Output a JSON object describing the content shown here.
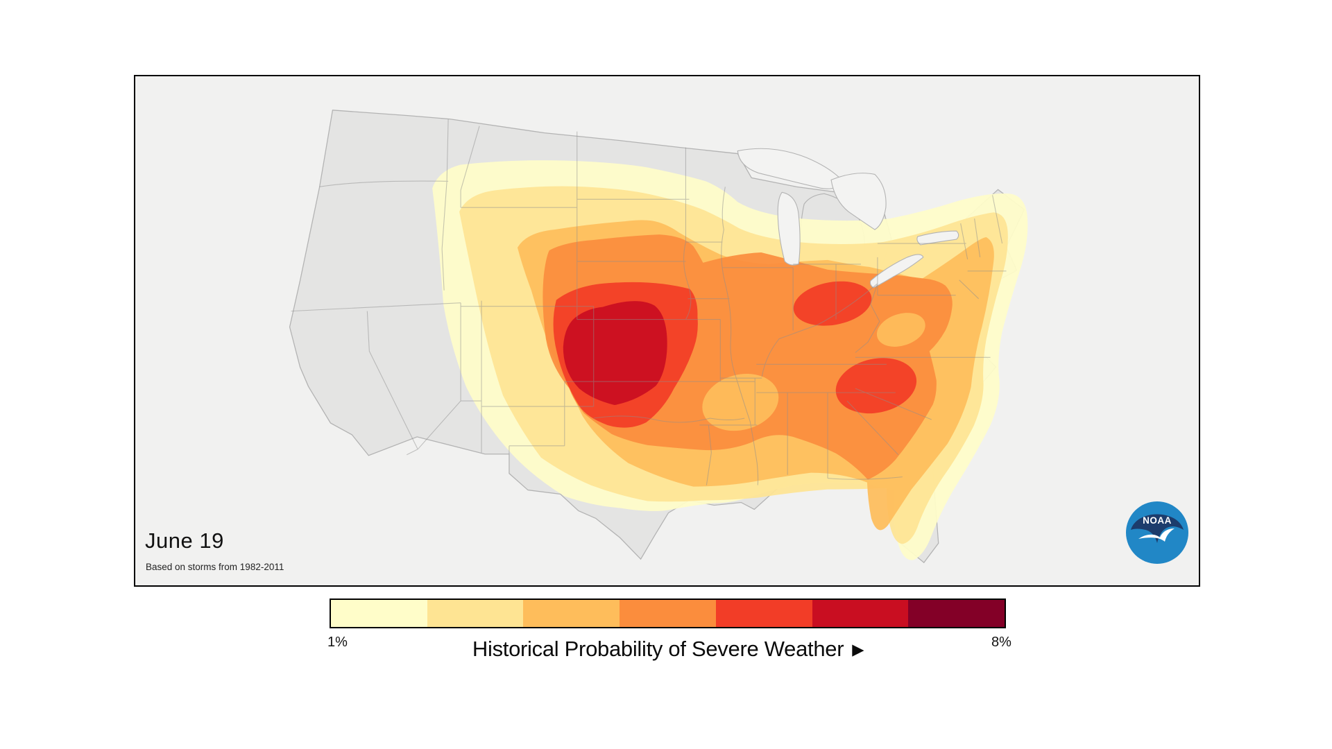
{
  "frame": {
    "date_label": "June 19",
    "subtitle": "Based on storms from 1982-2011"
  },
  "logo": {
    "org": "NOAA",
    "navy": "#1c3c6c",
    "blue": "#2187c6"
  },
  "legend": {
    "title": "Historical Probability of Severe Weather",
    "arrow": "▶",
    "min_label": "1%",
    "max_label": "8%",
    "scale_min_percent": 1,
    "scale_max_percent": 8,
    "colors": [
      "#FFFDC9",
      "#FEE493",
      "#FEBD5B",
      "#FB8D3D",
      "#F23D27",
      "#C90E21",
      "#830027"
    ]
  },
  "map": {
    "region": "Contiguous United States",
    "background": "#f1f1f0",
    "land": "#e4e4e3",
    "water": "#f3f3f2",
    "coast_line": "#b3b3b3",
    "state_line": "#8e8e8e",
    "contour_levels_percent": [
      1,
      2,
      3,
      4,
      5,
      6
    ],
    "hotspot_note_colors": {
      "central_plains_max": "#C90E21",
      "ohio_valley_secondary": "#F23D27",
      "carolinas_secondary": "#F23D27"
    }
  }
}
